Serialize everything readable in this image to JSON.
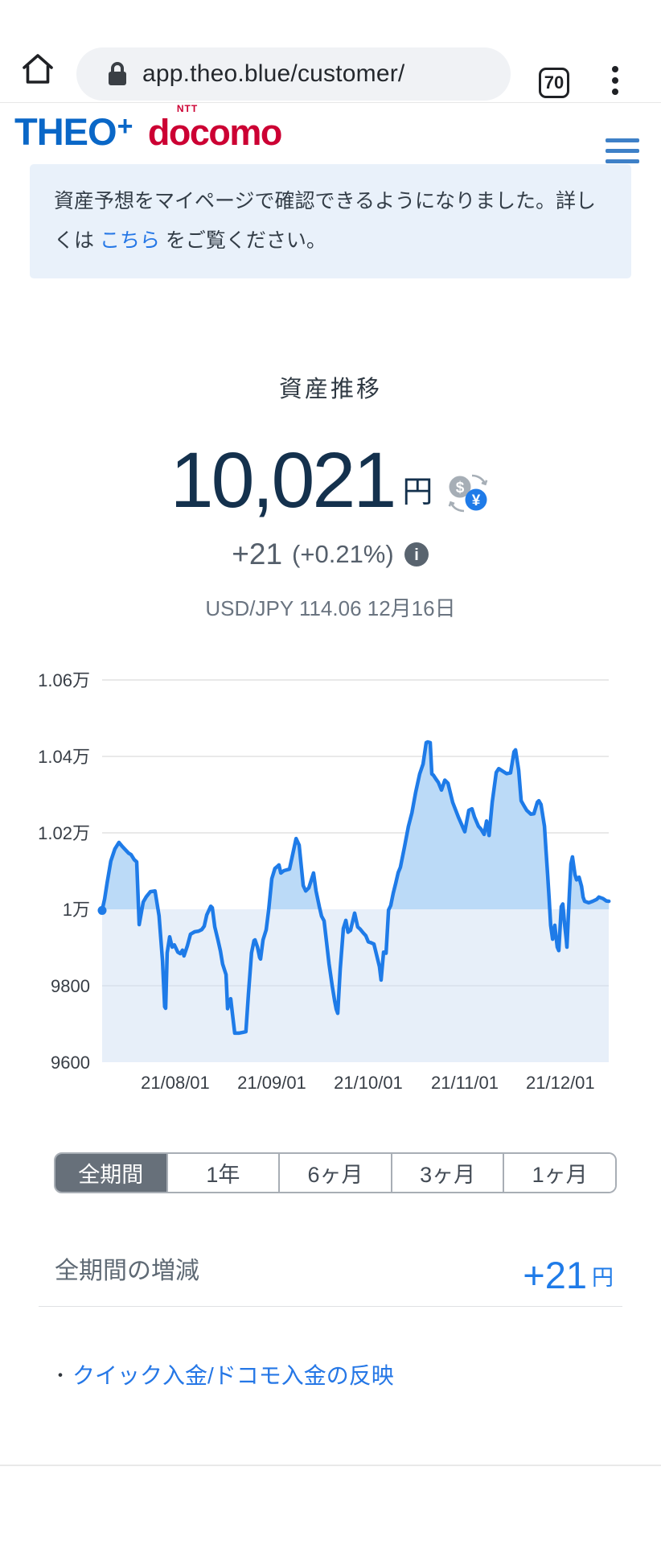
{
  "browser": {
    "url": "app.theo.blue/customer/",
    "tab_count": "70"
  },
  "header": {
    "brand_theo": "THEO",
    "brand_plus": "+",
    "brand_ntt": "NTT",
    "brand_docomo": "docomo"
  },
  "notice": {
    "text_before_link": "資産予想をマイページで確認できるようになりました。詳しくは ",
    "link_text": "こちら",
    "text_after_link": " をご覧ください。"
  },
  "summary": {
    "title": "資産推移",
    "amount": "10,021",
    "amount_unit": "円",
    "change": "+21",
    "change_pct": "(+0.21%)",
    "info_glyph": "i",
    "fx_line": "USD/JPY 114.06 12月16日",
    "currency_icon": {
      "from": "$",
      "to": "¥"
    }
  },
  "chart_data": {
    "type": "area",
    "title": "資産推移",
    "unit": "JPY",
    "start_date": "2021-07-08",
    "end_date": "2021-12-16",
    "baseline_value": 10000,
    "ylim": [
      9600,
      10600
    ],
    "x_unit": "days_since_start_date",
    "grid": true,
    "y_ticks": [
      {
        "value": 10600,
        "label": "1.06万",
        "grid": true
      },
      {
        "value": 10400,
        "label": "1.04万",
        "grid": true
      },
      {
        "value": 10200,
        "label": "1.02万",
        "grid": true
      },
      {
        "value": 10000,
        "label": "1万",
        "grid": false
      },
      {
        "value": 9800,
        "label": "9800",
        "grid": true
      },
      {
        "value": 9600,
        "label": "9600",
        "grid": false
      }
    ],
    "x_ticks": [
      {
        "day": 23.5,
        "label": "21/08/01"
      },
      {
        "day": 54.5,
        "label": "21/09/01"
      },
      {
        "day": 85.5,
        "label": "21/10/01"
      },
      {
        "day": 116.5,
        "label": "21/11/01"
      },
      {
        "day": 147.2,
        "label": "21/12/01"
      }
    ],
    "style": {
      "line_color": "#1E7BE8",
      "area_fill_above_baseline": "#BBDAF7",
      "band_fill_below_baseline": "#E7EFF9",
      "gridline_color": "#E2E2E2",
      "gridline_color_in_band": "#D8E1EC",
      "tick_text_color": "#383E46"
    },
    "points": [
      [
        0,
        9997
      ],
      [
        0.8,
        10027
      ],
      [
        1.6,
        10069
      ],
      [
        2.8,
        10126
      ],
      [
        4.1,
        10158
      ],
      [
        5.4,
        10175
      ],
      [
        6.5,
        10164
      ],
      [
        7.2,
        10158
      ],
      [
        8.5,
        10147
      ],
      [
        9.3,
        10143
      ],
      [
        10.3,
        10130
      ],
      [
        11.1,
        10124
      ],
      [
        11.9,
        9960
      ],
      [
        13.2,
        10019
      ],
      [
        14.2,
        10033
      ],
      [
        15.5,
        10046
      ],
      [
        17,
        10048
      ],
      [
        18.3,
        9983
      ],
      [
        19.4,
        9865
      ],
      [
        20.1,
        9745
      ],
      [
        20.4,
        9741
      ],
      [
        20.9,
        9886
      ],
      [
        21.7,
        9928
      ],
      [
        22.5,
        9901
      ],
      [
        23.2,
        9907
      ],
      [
        24.3,
        9888
      ],
      [
        25.1,
        9884
      ],
      [
        25.8,
        9893
      ],
      [
        26.3,
        9878
      ],
      [
        27.4,
        9905
      ],
      [
        28.4,
        9935
      ],
      [
        29.7,
        9941
      ],
      [
        31,
        9943
      ],
      [
        32,
        9947
      ],
      [
        32.8,
        9956
      ],
      [
        33.6,
        9985
      ],
      [
        34.9,
        10008
      ],
      [
        35.4,
        10004
      ],
      [
        36.2,
        9954
      ],
      [
        37.2,
        9920
      ],
      [
        38,
        9891
      ],
      [
        38.7,
        9857
      ],
      [
        39.8,
        9829
      ],
      [
        40.3,
        9740
      ],
      [
        41.3,
        9766
      ],
      [
        41.8,
        9731
      ],
      [
        42.6,
        9676
      ],
      [
        43.9,
        9676
      ],
      [
        45.2,
        9678
      ],
      [
        46.2,
        9680
      ],
      [
        47,
        9777
      ],
      [
        48,
        9886
      ],
      [
        48.8,
        9918
      ],
      [
        49.1,
        9920
      ],
      [
        49.9,
        9901
      ],
      [
        50.6,
        9874
      ],
      [
        50.9,
        9870
      ],
      [
        51.7,
        9920
      ],
      [
        52.7,
        9946
      ],
      [
        53.5,
        9998
      ],
      [
        54.5,
        10080
      ],
      [
        55.5,
        10107
      ],
      [
        56.3,
        10112
      ],
      [
        56.8,
        10116
      ],
      [
        57.4,
        10095
      ],
      [
        58.4,
        10101
      ],
      [
        60.2,
        10105
      ],
      [
        62.3,
        10185
      ],
      [
        63.3,
        10168
      ],
      [
        64.6,
        10062
      ],
      [
        65.4,
        10048
      ],
      [
        66.4,
        10056
      ],
      [
        67.9,
        10095
      ],
      [
        68.7,
        10048
      ],
      [
        69.8,
        10006
      ],
      [
        70.5,
        9982
      ],
      [
        71.3,
        9970
      ],
      [
        72.1,
        9914
      ],
      [
        72.9,
        9857
      ],
      [
        73.9,
        9800
      ],
      [
        74.7,
        9760
      ],
      [
        75.2,
        9739
      ],
      [
        75.7,
        9728
      ],
      [
        76.5,
        9844
      ],
      [
        77.5,
        9950
      ],
      [
        78.3,
        9971
      ],
      [
        79,
        9940
      ],
      [
        79.8,
        9945
      ],
      [
        81.1,
        9990
      ],
      [
        82.1,
        9954
      ],
      [
        82.9,
        9948
      ],
      [
        84,
        9937
      ],
      [
        84.7,
        9931
      ],
      [
        85.5,
        9915
      ],
      [
        86.5,
        9912
      ],
      [
        87.3,
        9909
      ],
      [
        89.1,
        9850
      ],
      [
        89.6,
        9815
      ],
      [
        90.4,
        9888
      ],
      [
        91.2,
        9885
      ],
      [
        92,
        9998
      ],
      [
        92.7,
        10010
      ],
      [
        93.5,
        10042
      ],
      [
        94.3,
        10068
      ],
      [
        95.1,
        10096
      ],
      [
        95.8,
        10110
      ],
      [
        97.1,
        10162
      ],
      [
        98.4,
        10217
      ],
      [
        99.5,
        10252
      ],
      [
        100.7,
        10305
      ],
      [
        102,
        10354
      ],
      [
        103.1,
        10380
      ],
      [
        104.1,
        10436
      ],
      [
        104.6,
        10438
      ],
      [
        105.4,
        10436
      ],
      [
        105.9,
        10354
      ],
      [
        106.4,
        10351
      ],
      [
        107.2,
        10341
      ],
      [
        108,
        10332
      ],
      [
        109,
        10312
      ],
      [
        110.1,
        10338
      ],
      [
        111.1,
        10330
      ],
      [
        112.6,
        10280
      ],
      [
        114.4,
        10242
      ],
      [
        116,
        10212
      ],
      [
        116.5,
        10203
      ],
      [
        117.8,
        10259
      ],
      [
        118.8,
        10263
      ],
      [
        119.6,
        10242
      ],
      [
        120.9,
        10217
      ],
      [
        121.7,
        10210
      ],
      [
        122.7,
        10196
      ],
      [
        123.5,
        10231
      ],
      [
        124.3,
        10193
      ],
      [
        125.3,
        10280
      ],
      [
        126.6,
        10358
      ],
      [
        127.4,
        10368
      ],
      [
        128.6,
        10362
      ],
      [
        129.9,
        10355
      ],
      [
        131.2,
        10357
      ],
      [
        132.3,
        10412
      ],
      [
        132.8,
        10417
      ],
      [
        133.8,
        10364
      ],
      [
        134.6,
        10284
      ],
      [
        135.6,
        10270
      ],
      [
        136.4,
        10259
      ],
      [
        137.7,
        10249
      ],
      [
        138.7,
        10250
      ],
      [
        139.8,
        10280
      ],
      [
        140.3,
        10284
      ],
      [
        141,
        10274
      ],
      [
        142.1,
        10217
      ],
      [
        142.6,
        10154
      ],
      [
        143.1,
        10091
      ],
      [
        143.6,
        10028
      ],
      [
        144.1,
        9958
      ],
      [
        144.7,
        9922
      ],
      [
        145.4,
        9958
      ],
      [
        146.2,
        9901
      ],
      [
        146.7,
        9892
      ],
      [
        147.5,
        10007
      ],
      [
        148,
        10014
      ],
      [
        148.5,
        9965
      ],
      [
        149.1,
        9922
      ],
      [
        149.3,
        9901
      ],
      [
        150.1,
        10042
      ],
      [
        150.6,
        10119
      ],
      [
        151.1,
        10137
      ],
      [
        151.9,
        10091
      ],
      [
        152.4,
        10077
      ],
      [
        153.2,
        10084
      ],
      [
        154,
        10060
      ],
      [
        154.5,
        10032
      ],
      [
        155,
        10021
      ],
      [
        156.3,
        10017
      ],
      [
        157.6,
        10021
      ],
      [
        158.9,
        10026
      ],
      [
        159.6,
        10032
      ],
      [
        160.9,
        10028
      ],
      [
        162,
        10022
      ],
      [
        162.8,
        10021
      ]
    ]
  },
  "period_selector": {
    "options": [
      "全期間",
      "1年",
      "6ヶ月",
      "3ヶ月",
      "1ヶ月"
    ],
    "selected": "全期間"
  },
  "period_summary": {
    "label": "全期間の増減",
    "value": "+21",
    "unit": "円"
  },
  "links": {
    "bullet": "・",
    "quick_deposit": "クイック入金/ドコモ入金の反映"
  },
  "colors": {
    "theo_blue": "#0A67C7",
    "docomo_red": "#CC0033",
    "link_blue": "#2577E6",
    "chart_line_blue": "#1E7BE8",
    "value_navy": "#14314D",
    "selected_period_bg": "#67707A",
    "notice_bg": "#E9F1FA"
  }
}
